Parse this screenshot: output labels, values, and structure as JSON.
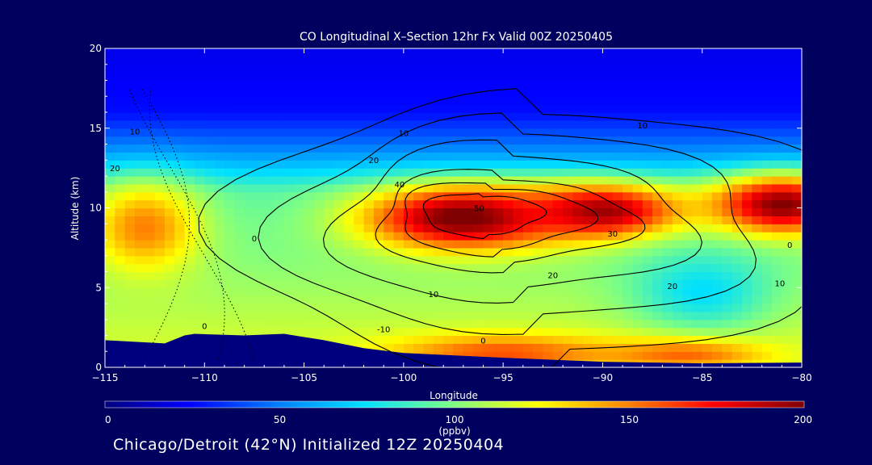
{
  "colors": {
    "background": "#00005f",
    "terrain": "#00007f",
    "contour": "#000000",
    "text": "#ffffff"
  },
  "chart_data": {
    "type": "heatmap",
    "title": "CO Longitudinal X–Section 12hr  Fx Valid 00Z 20250405",
    "subtitle": "Chicago/Detroit (42°N) Initialized 12Z 20250404",
    "xlabel": "Longitude",
    "ylabel": "Altitude (km)",
    "xlim": [
      -115,
      -80
    ],
    "ylim": [
      0,
      20
    ],
    "x_ticks": [
      -115,
      -110,
      -105,
      -100,
      -95,
      -90,
      -85,
      -80
    ],
    "x_tick_labels": [
      "−115",
      "−110",
      "−105",
      "−100",
      "−95",
      "−90",
      "−85",
      "−80"
    ],
    "y_ticks": [
      0,
      5,
      10,
      15,
      20
    ],
    "colorbar": {
      "label": "(ppbv)",
      "range": [
        0,
        200
      ],
      "ticks": [
        0,
        50,
        100,
        150,
        200
      ],
      "colormap": "rainbow-blue-to-dark-red"
    },
    "field_blobs": [
      {
        "x": -113,
        "y": 8.8,
        "sx": 2.0,
        "sy": 2.0,
        "v": 150
      },
      {
        "x": -97,
        "y": 9.4,
        "sx": 3.5,
        "sy": 1.4,
        "v": 205
      },
      {
        "x": -90,
        "y": 9.8,
        "sx": 2.8,
        "sy": 1.2,
        "v": 195
      },
      {
        "x": -81,
        "y": 10.2,
        "sx": 2.5,
        "sy": 1.3,
        "v": 200
      },
      {
        "x": -85,
        "y": 4.8,
        "sx": 2.5,
        "sy": 1.8,
        "v": 75
      },
      {
        "x": -95,
        "y": 0.9,
        "sx": 4.0,
        "sy": 0.8,
        "v": 160
      },
      {
        "x": -86,
        "y": 0.8,
        "sx": 3.0,
        "sy": 0.7,
        "v": 155
      }
    ],
    "contours": [
      {
        "label": "50",
        "value": 50,
        "center": [
          -96,
          9.6
        ],
        "rx": 3.0,
        "ry": 1.3,
        "label_at": [
          -96.2,
          9.8
        ]
      },
      {
        "label": "40",
        "value": 40,
        "center": [
          -95.5,
          9.4
        ],
        "rx": 4.8,
        "ry": 2.1,
        "label_at": [
          -100.2,
          11.3
        ]
      },
      {
        "label": "30",
        "value": 30,
        "center": [
          -95,
          9.2
        ],
        "rx": 6.5,
        "ry": 2.9,
        "label_at": [
          -89.5,
          8.2
        ]
      },
      {
        "label": "20",
        "value": 20,
        "center": [
          -94.5,
          9.0
        ],
        "rx": 9.0,
        "ry": 4.6,
        "label_at": [
          -101.5,
          12.8
        ]
      },
      {
        "label": "10",
        "value": 10,
        "center": [
          -94,
          8.8
        ],
        "rx": 12.0,
        "ry": 6.3,
        "label_at": [
          -100,
          14.5
        ]
      },
      {
        "label": "0",
        "value": 0,
        "center": [
          -93,
          8.5
        ],
        "rx": 15.5,
        "ry": 8.2,
        "label_at": [
          -107.5,
          7.9
        ]
      }
    ],
    "contour_labels": [
      {
        "text": "10",
        "x": -113.5,
        "y": 14.6
      },
      {
        "text": "20",
        "x": -114.5,
        "y": 12.3
      },
      {
        "text": "10",
        "x": -88,
        "y": 15.0
      },
      {
        "text": "20",
        "x": -92.5,
        "y": 5.6
      },
      {
        "text": "10",
        "x": -98.5,
        "y": 4.4
      },
      {
        "text": "-10",
        "x": -101,
        "y": 2.2
      },
      {
        "text": "0",
        "x": -96,
        "y": 1.5
      },
      {
        "text": "20",
        "x": -86.5,
        "y": 4.9
      },
      {
        "text": "0",
        "x": -80.6,
        "y": 7.5
      },
      {
        "text": "10",
        "x": -81.1,
        "y": 5.1
      },
      {
        "text": "0",
        "x": -110,
        "y": 2.4
      }
    ],
    "terrain_km": [
      [
        -115,
        1.7
      ],
      [
        -112,
        1.5
      ],
      [
        -111,
        2.0
      ],
      [
        -110.5,
        2.1
      ],
      [
        -108,
        2.0
      ],
      [
        -106,
        2.1
      ],
      [
        -104,
        1.7
      ],
      [
        -102,
        1.2
      ],
      [
        -100,
        0.9
      ],
      [
        -95,
        0.6
      ],
      [
        -90,
        0.35
      ],
      [
        -85,
        0.25
      ],
      [
        -80,
        0.3
      ]
    ],
    "grid": false,
    "legend_position": "none"
  }
}
